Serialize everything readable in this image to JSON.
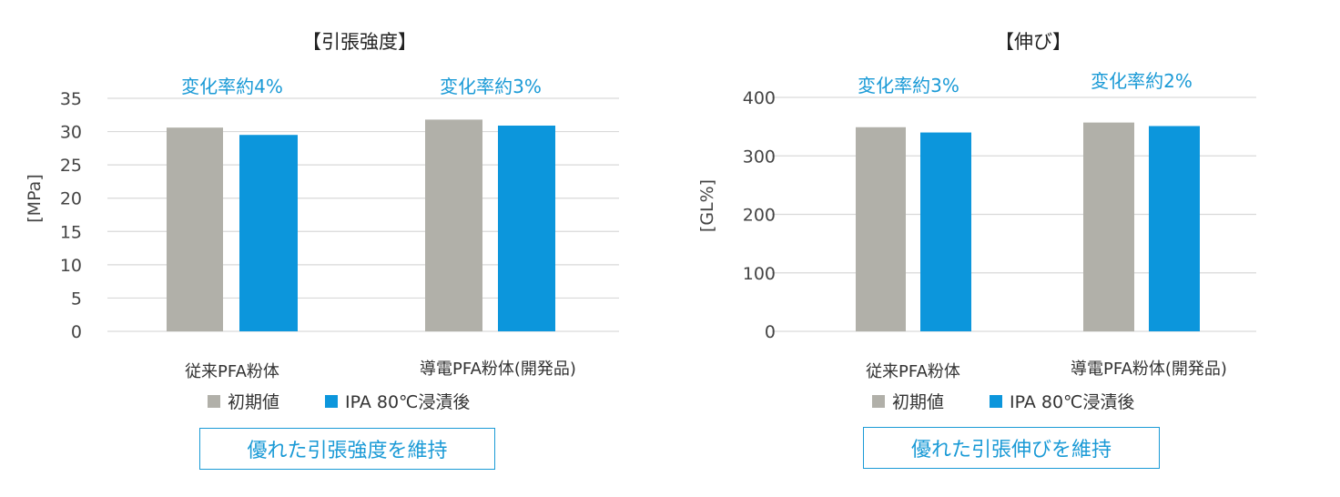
{
  "colors": {
    "initial": "#b1b0a9",
    "after": "#0c96dc",
    "annotation": "#1a9ad6",
    "grid": "#d9d9d9"
  },
  "legend": {
    "initial": "初期値",
    "after": "IPA 80℃浸漬後"
  },
  "chart_data": [
    {
      "type": "bar",
      "title": "【引張強度】",
      "ylabel": "[MPa]",
      "ylim": [
        0,
        35
      ],
      "yticks": [
        "0",
        "5",
        "10",
        "15",
        "20",
        "25",
        "30",
        "35"
      ],
      "ytick_values": [
        0,
        5,
        10,
        15,
        20,
        25,
        30,
        35
      ],
      "categories": [
        "従来PFA粉体",
        "導電PFA粉体(開発品)"
      ],
      "annotations": [
        "変化率約4%",
        "変化率約3%"
      ],
      "series": [
        {
          "name": "初期値",
          "values": [
            30.6,
            31.8
          ]
        },
        {
          "name": "IPA 80℃浸漬後",
          "values": [
            29.5,
            30.9
          ]
        }
      ],
      "grid": true,
      "legend_position": "bottom",
      "note": "優れた引張強度を維持"
    },
    {
      "type": "bar",
      "title": "【伸び】",
      "ylabel": "[GL%]",
      "ylim": [
        0,
        400
      ],
      "yticks": [
        "0",
        "100",
        "200",
        "300",
        "400"
      ],
      "ytick_values": [
        0,
        100,
        200,
        300,
        400
      ],
      "categories": [
        "従来PFA粉体",
        "導電PFA粉体(開発品)"
      ],
      "annotations": [
        "変化率約3%",
        "変化率約2%"
      ],
      "series": [
        {
          "name": "初期値",
          "values": [
            349,
            357
          ]
        },
        {
          "name": "IPA 80℃浸漬後",
          "values": [
            340,
            351
          ]
        }
      ],
      "grid": true,
      "legend_position": "bottom",
      "note": "優れた引張伸びを維持"
    }
  ]
}
